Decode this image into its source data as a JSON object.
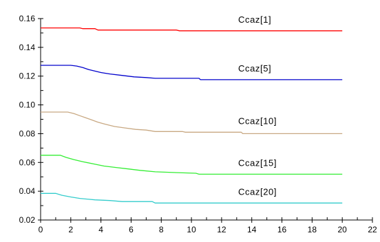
{
  "chart_data": {
    "type": "line",
    "title": "",
    "xlabel": "",
    "ylabel": "",
    "xlim": [
      0,
      22
    ],
    "ylim": [
      0.02,
      0.16
    ],
    "x_ticks": [
      "0",
      "2",
      "4",
      "6",
      "8",
      "10",
      "12",
      "14",
      "16",
      "18",
      "20",
      "22"
    ],
    "y_ticks": [
      "0.02",
      "0.04",
      "0.06",
      "0.08",
      "0.10",
      "0.12",
      "0.14",
      "0.16"
    ],
    "grid": false,
    "legend": "none",
    "series": [
      {
        "name": "Ccaz[1]",
        "color": "#ff0000",
        "points": [
          [
            0,
            0.1535
          ],
          [
            2.6,
            0.1535
          ],
          [
            2.8,
            0.153
          ],
          [
            3.6,
            0.153
          ],
          [
            3.8,
            0.152
          ],
          [
            9.0,
            0.152
          ],
          [
            9.2,
            0.1515
          ],
          [
            20,
            0.1515
          ]
        ]
      },
      {
        "name": "Ccaz[5]",
        "color": "#0000cc",
        "points": [
          [
            0,
            0.1275
          ],
          [
            2.0,
            0.1275
          ],
          [
            2.4,
            0.127
          ],
          [
            2.8,
            0.126
          ],
          [
            3.2,
            0.1245
          ],
          [
            3.6,
            0.1235
          ],
          [
            4.0,
            0.1225
          ],
          [
            4.6,
            0.1215
          ],
          [
            5.4,
            0.1205
          ],
          [
            6.2,
            0.1195
          ],
          [
            7.0,
            0.119
          ],
          [
            7.6,
            0.1185
          ],
          [
            10.5,
            0.1185
          ],
          [
            10.6,
            0.1175
          ],
          [
            20,
            0.1175
          ]
        ]
      },
      {
        "name": "Ccaz[10]",
        "color": "#c8a882",
        "points": [
          [
            0,
            0.095
          ],
          [
            1.8,
            0.095
          ],
          [
            2.2,
            0.094
          ],
          [
            2.6,
            0.0925
          ],
          [
            3.0,
            0.091
          ],
          [
            3.4,
            0.0895
          ],
          [
            3.8,
            0.088
          ],
          [
            4.3,
            0.0865
          ],
          [
            4.9,
            0.085
          ],
          [
            5.6,
            0.084
          ],
          [
            6.3,
            0.083
          ],
          [
            7.0,
            0.0825
          ],
          [
            7.6,
            0.0815
          ],
          [
            9.4,
            0.0815
          ],
          [
            9.6,
            0.081
          ],
          [
            13.3,
            0.081
          ],
          [
            13.4,
            0.08
          ],
          [
            20,
            0.08
          ]
        ]
      },
      {
        "name": "Ccaz[15]",
        "color": "#33ee33",
        "points": [
          [
            0,
            0.065
          ],
          [
            1.3,
            0.065
          ],
          [
            1.7,
            0.0635
          ],
          [
            2.2,
            0.062
          ],
          [
            2.8,
            0.0605
          ],
          [
            3.5,
            0.059
          ],
          [
            4.2,
            0.0575
          ],
          [
            5.0,
            0.0565
          ],
          [
            5.8,
            0.0555
          ],
          [
            6.6,
            0.0545
          ],
          [
            7.6,
            0.0535
          ],
          [
            8.8,
            0.053
          ],
          [
            10.3,
            0.0525
          ],
          [
            10.5,
            0.0518
          ],
          [
            20,
            0.0518
          ]
        ]
      },
      {
        "name": "Ccaz[20]",
        "color": "#33cccc",
        "points": [
          [
            0,
            0.0385
          ],
          [
            1.0,
            0.0385
          ],
          [
            1.4,
            0.0372
          ],
          [
            2.0,
            0.036
          ],
          [
            2.6,
            0.035
          ],
          [
            3.6,
            0.034
          ],
          [
            4.6,
            0.0335
          ],
          [
            5.4,
            0.0328
          ],
          [
            7.4,
            0.0328
          ],
          [
            7.6,
            0.0318
          ],
          [
            20,
            0.0318
          ]
        ]
      }
    ]
  }
}
